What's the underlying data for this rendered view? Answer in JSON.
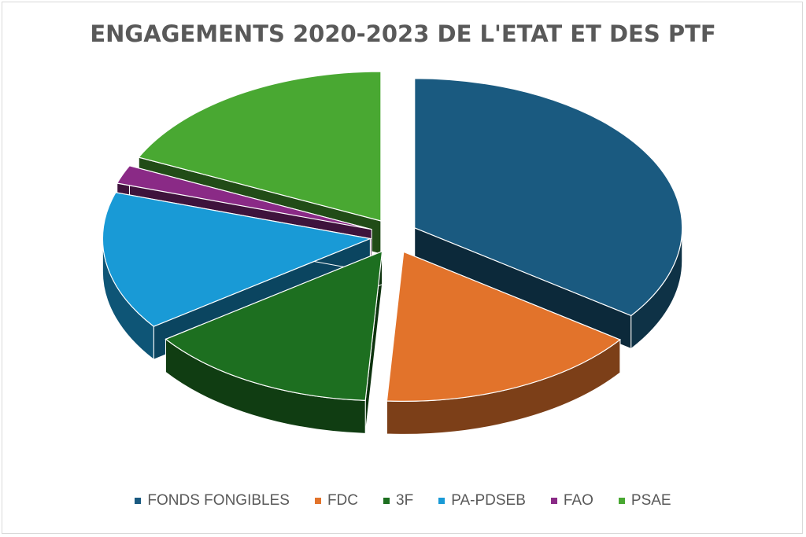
{
  "chart_data": {
    "type": "pie",
    "title": "ENGAGEMENTS 2020-2023 DE L'ETAT ET DES PTF",
    "categories": [
      "FONDS FONGIBLES",
      "FDC",
      "3F",
      "PA-PDSEB",
      "FAO",
      "PSAE"
    ],
    "values": [
      35,
      16,
      14,
      15,
      2,
      18
    ],
    "colors": [
      "#1a5a80",
      "#e2732b",
      "#1d6f20",
      "#199ad6",
      "#8a2a86",
      "#49a832"
    ],
    "exploded": true,
    "style": "3d",
    "legend_position": "bottom"
  }
}
